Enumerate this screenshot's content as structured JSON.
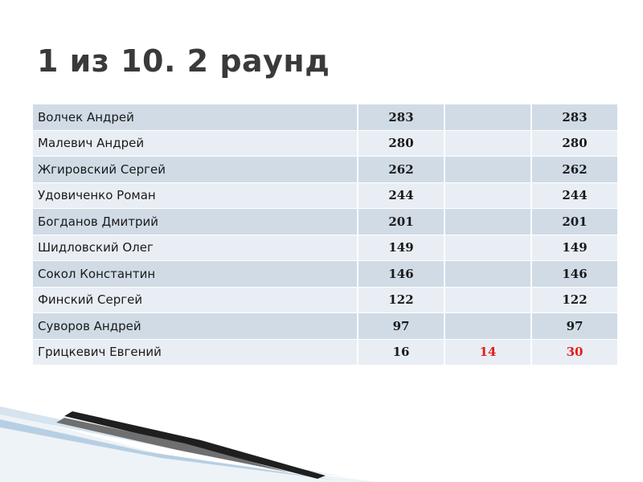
{
  "slide": {
    "title": "1 из 10. 2 раунд"
  },
  "table": {
    "rows": [
      {
        "name": "Волчек Андрей",
        "round1": "283",
        "round2": "",
        "total": "283"
      },
      {
        "name": "Малевич Андрей",
        "round1": "280",
        "round2": "",
        "total": "280"
      },
      {
        "name": "Жгировский Сергей",
        "round1": "262",
        "round2": "",
        "total": "262"
      },
      {
        "name": "Удовиченко Роман",
        "round1": "244",
        "round2": "",
        "total": "244"
      },
      {
        "name": "Богданов Дмитрий",
        "round1": "201",
        "round2": "",
        "total": "201"
      },
      {
        "name": "Шидловский Олег",
        "round1": "149",
        "round2": "",
        "total": "149"
      },
      {
        "name": "Сокол Константин",
        "round1": "146",
        "round2": "",
        "total": "146"
      },
      {
        "name": "Финский Сергей",
        "round1": "122",
        "round2": "",
        "total": "122"
      },
      {
        "name": "Суворов Андрей",
        "round1": "97",
        "round2": "",
        "total": "97"
      },
      {
        "name": "Грицкевич Евгений",
        "round1": "16",
        "round2": "14",
        "total": "30"
      }
    ]
  },
  "colors": {
    "row_dark": "#d0dbe6",
    "row_light": "#e9eef4",
    "highlight_red": "#e31b1b",
    "title_text": "#3a3a3a"
  }
}
